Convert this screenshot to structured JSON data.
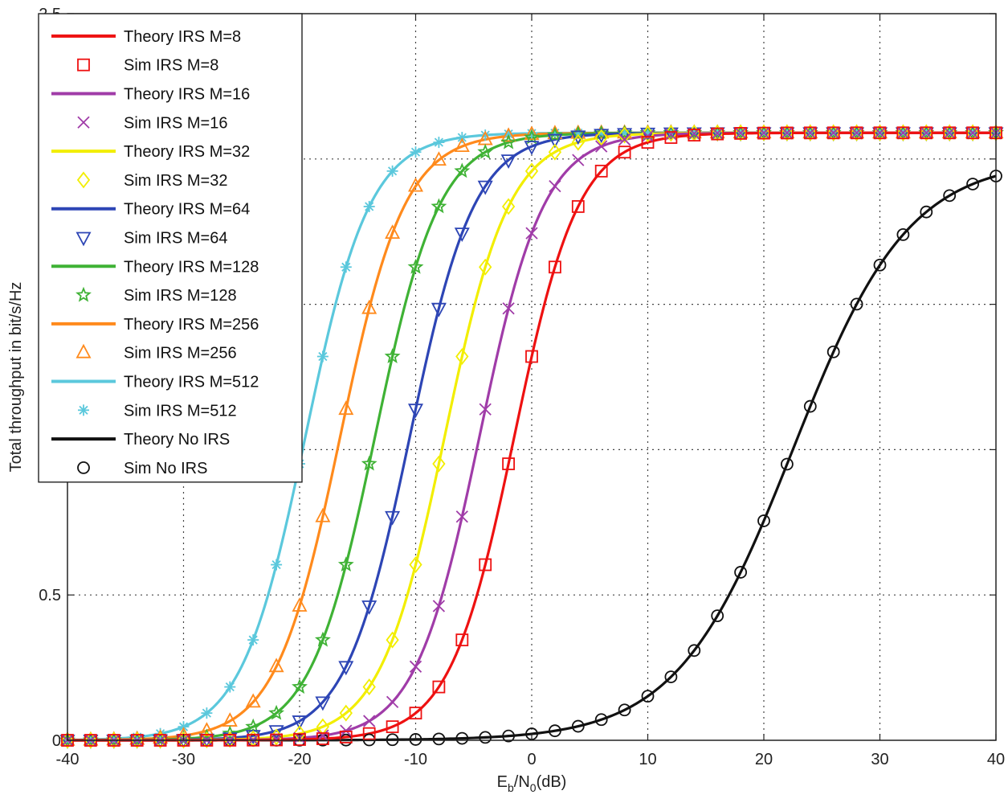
{
  "chart_data": {
    "type": "line",
    "title": "",
    "xlabel": {
      "base": "E",
      "sub1": "b",
      "mid": "/N",
      "sub2": "0",
      "tail": "(dB)"
    },
    "ylabel": "Total throughput in bit/s/Hz",
    "xlim": [
      -40,
      40
    ],
    "ylim": [
      0,
      2.5
    ],
    "xticks": [
      -40,
      -30,
      -20,
      -10,
      0,
      10,
      20,
      30,
      40
    ],
    "xtick_labels": [
      "-40",
      "-30",
      "-20",
      "-10",
      "0",
      "10",
      "20",
      "30",
      "40"
    ],
    "yticks": [
      0,
      0.5,
      1,
      1.5,
      2,
      2.5
    ],
    "ytick_labels": [
      "0",
      "0.5",
      "",
      "",
      "",
      "2.5"
    ],
    "grid": true,
    "legend_position": "top-left",
    "marker_x_start": -40,
    "marker_x_step": 2,
    "series": [
      {
        "name": "Theory IRS M=8",
        "marker_name": "Sim IRS M=8",
        "color": "#ee1111",
        "marker": "square",
        "midpoint": -1.5,
        "slope": 0.36,
        "ymax": 2.09
      },
      {
        "name": "Theory IRS M=16",
        "marker_name": "Sim IRS M=16",
        "color": "#a03ca8",
        "marker": "x",
        "midpoint": -4.5,
        "slope": 0.36,
        "ymax": 2.09
      },
      {
        "name": "Theory IRS M=32",
        "marker_name": "Sim IRS M=32",
        "color": "#f2ee00",
        "marker": "diamond",
        "midpoint": -7.5,
        "slope": 0.36,
        "ymax": 2.09
      },
      {
        "name": "Theory IRS M=64",
        "marker_name": "Sim IRS M=64",
        "color": "#2d45b5",
        "marker": "triangle-down",
        "midpoint": -10.5,
        "slope": 0.36,
        "ymax": 2.09
      },
      {
        "name": "Theory IRS M=128",
        "marker_name": "Sim IRS M=128",
        "color": "#3fb235",
        "marker": "star",
        "midpoint": -13.5,
        "slope": 0.36,
        "ymax": 2.09
      },
      {
        "name": "Theory IRS M=256",
        "marker_name": "Sim IRS M=256",
        "color": "#ff8a1c",
        "marker": "triangle-up",
        "midpoint": -16.5,
        "slope": 0.36,
        "ymax": 2.09
      },
      {
        "name": "Theory IRS M=512",
        "marker_name": "Sim IRS M=512",
        "color": "#5bc8dc",
        "marker": "asterisk",
        "midpoint": -19.5,
        "slope": 0.36,
        "ymax": 2.09
      },
      {
        "name": "Theory No IRS",
        "marker_name": "Sim No IRS",
        "color": "#111111",
        "marker": "circle",
        "midpoint": 22.5,
        "slope": 0.2,
        "ymax": 2.0
      }
    ]
  }
}
